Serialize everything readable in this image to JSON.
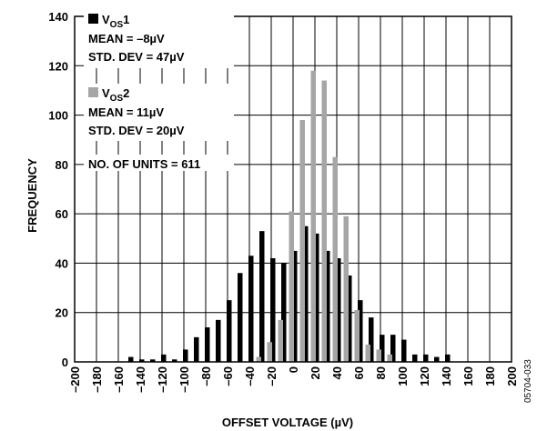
{
  "chart_data": {
    "type": "bar",
    "xlabel": "OFFSET VOLTAGE (µV)",
    "ylabel": "FREQUENCY",
    "xlim": [
      -200,
      200
    ],
    "ylim": [
      0,
      140
    ],
    "x_ticks": [
      -200,
      -180,
      -160,
      -140,
      -120,
      -100,
      -80,
      -60,
      -40,
      -20,
      0,
      20,
      40,
      60,
      80,
      100,
      120,
      140,
      160,
      180,
      200
    ],
    "y_ticks": [
      0,
      20,
      40,
      60,
      80,
      100,
      120,
      140
    ],
    "grid": true,
    "legend_placement": "top-left",
    "series": [
      {
        "name": "VOS1",
        "name_main": "V",
        "name_sub": "OS",
        "name_suffix": "1",
        "color": "#000000",
        "x": [
          -145,
          -135,
          -125,
          -115,
          -105,
          -95,
          -85,
          -75,
          -65,
          -55,
          -45,
          -35,
          -25,
          -15,
          -5,
          5,
          15,
          25,
          35,
          45,
          55,
          65,
          75,
          85,
          95,
          105,
          115,
          125,
          135,
          145
        ],
        "values": [
          2,
          1,
          1,
          3,
          1,
          5,
          10,
          14,
          17,
          25,
          36,
          43,
          53,
          42,
          40,
          45,
          55,
          52,
          45,
          42,
          35,
          25,
          18,
          11,
          11,
          9,
          3,
          3,
          2,
          3
        ]
      },
      {
        "name": "VOS2",
        "name_main": "V",
        "name_sub": "OS",
        "name_suffix": "2",
        "color": "#a6a6a6",
        "x": [
          -35,
          -25,
          -15,
          -5,
          5,
          15,
          25,
          35,
          45,
          55,
          65,
          75,
          85
        ],
        "values": [
          2,
          8,
          17,
          61,
          98,
          118,
          114,
          83,
          59,
          21,
          7,
          5,
          3
        ]
      }
    ],
    "annotations": [
      "MEAN = –8µV",
      "STD. DEV = 47µV",
      "MEAN = 11µV",
      "STD. DEV = 20µV",
      "NO. OF UNITS = 611"
    ],
    "figure_code": "05704-033"
  }
}
